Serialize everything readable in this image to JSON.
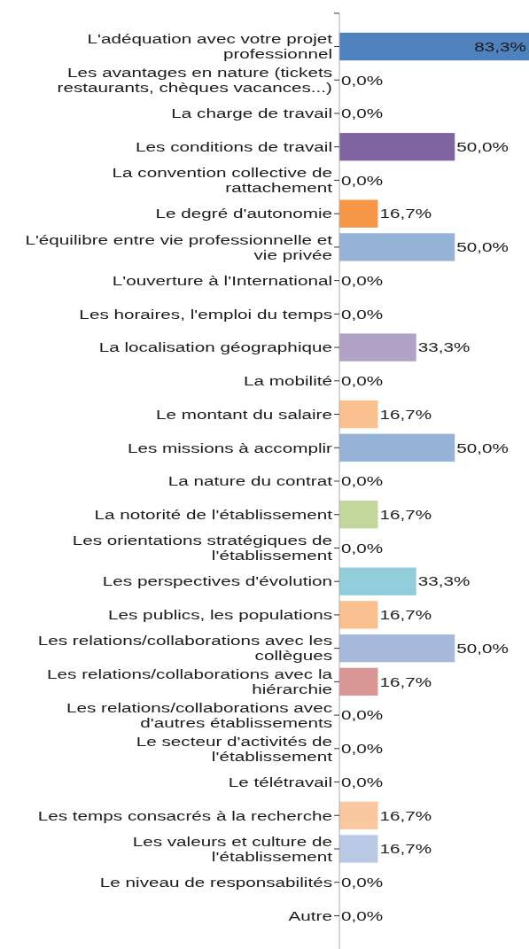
{
  "chart_data": {
    "type": "bar",
    "orientation": "horizontal",
    "categories": [
      "L'adéquation avec votre projet professionnel",
      "Les avantages en nature (tickets restaurants, chèques vacances...)",
      "La charge de travail",
      "Les conditions de travail",
      "La convention collective de rattachement",
      "Le degré d'autonomie",
      "L'équilibre entre vie professionnelle et vie privée",
      "L'ouverture à l'International",
      "Les horaires, l'emploi du temps",
      "La localisation géographique",
      "La mobilité",
      "Le montant du salaire",
      "Les missions à accomplir",
      "La nature du contrat",
      "La notorité de l'établissement",
      "Les orientations stratégiques de l'établissement",
      "Les perspectives d'évolution",
      "Les publics, les populations",
      "Les relations/collaborations avec les collègues",
      "Les relations/collaborations avec la hiérarchie",
      "Les relations/collaborations avec d'autres établissements",
      "Le secteur d'activités de l'établissement",
      "Le télétravail",
      "Les temps consacrés à la recherche",
      "Les valeurs et culture de l'établissement",
      "Le niveau de responsabilités",
      "Autre"
    ],
    "values": [
      83.3,
      0,
      0,
      50,
      0,
      16.7,
      50,
      0,
      0,
      33.3,
      0,
      16.7,
      50,
      0,
      16.7,
      0,
      33.3,
      16.7,
      50,
      16.7,
      0,
      0,
      0,
      16.7,
      16.7,
      0,
      0
    ],
    "value_labels": [
      "83,3%",
      "0,0%",
      "0,0%",
      "50,0%",
      "0,0%",
      "16,7%",
      "50,0%",
      "0,0%",
      "0,0%",
      "33,3%",
      "0,0%",
      "16,7%",
      "50,0%",
      "0,0%",
      "16,7%",
      "0,0%",
      "33,3%",
      "16,7%",
      "50,0%",
      "16,7%",
      "0,0%",
      "0,0%",
      "0,0%",
      "16,7%",
      "16,7%",
      "0,0%",
      "0,0%"
    ],
    "colors": [
      "#4f81bd",
      "#cccccc",
      "#cccccc",
      "#8064a2",
      "#cccccc",
      "#f79646",
      "#95b3d7",
      "#cccccc",
      "#cccccc",
      "#b3a2c7",
      "#cccccc",
      "#fac090",
      "#95b3d7",
      "#cccccc",
      "#c3d69b",
      "#cccccc",
      "#92cddc",
      "#fac090",
      "#a6b9dc",
      "#d99694",
      "#cccccc",
      "#cccccc",
      "#cccccc",
      "#fac8a0",
      "#b9c9e6",
      "#cccccc",
      "#cccccc"
    ],
    "tick_labels": "y"
  }
}
